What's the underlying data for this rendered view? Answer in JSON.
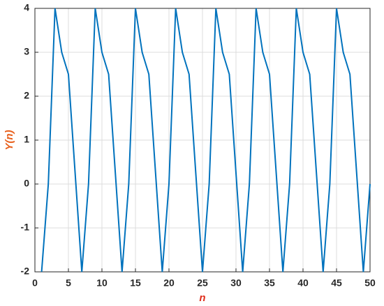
{
  "chart_data": {
    "type": "line",
    "xlabel": "n",
    "ylabel": "Y(n)",
    "x": [
      1,
      2,
      3,
      4,
      5,
      6,
      7,
      8,
      9,
      10,
      11,
      12,
      13,
      14,
      15,
      16,
      17,
      18,
      19,
      20,
      21,
      22,
      23,
      24,
      25,
      26,
      27,
      28,
      29,
      30,
      31,
      32,
      33,
      34,
      35,
      36,
      37,
      38,
      39,
      40,
      41,
      42,
      43,
      44,
      45,
      46,
      47,
      48,
      49,
      50
    ],
    "series": [
      {
        "name": "Y(n)",
        "color": "#0072bd",
        "values": [
          -2,
          0,
          4,
          3,
          2.5,
          0.25,
          -2,
          0,
          4,
          3,
          2.5,
          0.25,
          -2,
          0,
          4,
          3,
          2.5,
          0.25,
          -2,
          0,
          4,
          3,
          2.5,
          0.25,
          -2,
          0,
          4,
          3,
          2.5,
          0.25,
          -2,
          0,
          4,
          3,
          2.5,
          0.25,
          -2,
          0,
          4,
          3,
          2.5,
          0.25,
          -2,
          0,
          4,
          3,
          2.5,
          0.25,
          -2,
          0
        ]
      }
    ],
    "xlim": [
      0,
      50
    ],
    "ylim": [
      -2,
      4
    ],
    "xticks": [
      0,
      5,
      10,
      15,
      20,
      25,
      30,
      35,
      40,
      45,
      50
    ],
    "yticks": [
      -2,
      -1,
      0,
      1,
      2,
      3,
      4
    ],
    "grid": true
  }
}
